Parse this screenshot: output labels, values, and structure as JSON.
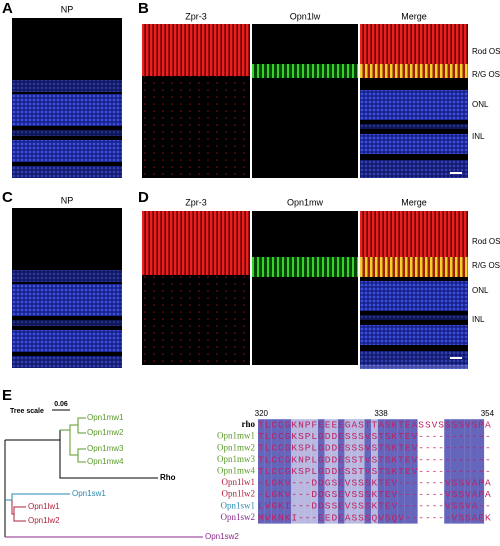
{
  "panel_a": {
    "label": "A",
    "title": "NP"
  },
  "panel_b": {
    "label": "B",
    "titles": [
      "Zpr-3",
      "Opn1lw",
      "Merge"
    ],
    "layers": [
      "Rod OS",
      "R/G OS",
      "ONL",
      "INL"
    ]
  },
  "panel_c": {
    "label": "C",
    "title": "NP"
  },
  "panel_d": {
    "label": "D",
    "titles": [
      "Zpr-3",
      "Opn1mw",
      "Merge"
    ],
    "layers": [
      "Rod OS",
      "R/G OS",
      "ONL",
      "INL"
    ]
  },
  "panel_e": {
    "label": "E",
    "tree_scale_label": "Tree scale",
    "tree_scale": "0.06",
    "leaves": [
      "Opn1mw1",
      "Opn1mw2",
      "Opn1mw3",
      "Opn1mw4",
      "Rho",
      "Opn1sw1",
      "Opn1lw1",
      "Opn1lw2",
      "Opn1sw2"
    ],
    "alignment": {
      "positions": [
        "320",
        "338",
        "354"
      ],
      "rows": [
        {
          "name": "rho",
          "sequence": "TLCCGKNPFEEEEGASTTASKTEASSVSSSSVSPA"
        },
        {
          "name": "Opn1mw1",
          "sequence": "TLCCGKSPLGDDESSSVSTSKTEV-----------"
        },
        {
          "name": "Opn1mw2",
          "sequence": "TLCCGKSPLGDDESSSVSTSKTEV-----------"
        },
        {
          "name": "Opn1mw3",
          "sequence": "TLCCGKNPLGDDESSTVSTSKTEV-----------"
        },
        {
          "name": "Opn1mw4",
          "sequence": "TLCCGKSPLGDDESSTVSTSKTEV-----------"
        },
        {
          "name": "Opn1lw1",
          "sequence": "-LGKV---DDGSEVSSSKTEV-------VSSVAPA"
        },
        {
          "name": "Opn1lw2",
          "sequence": "-LGKV---DDGSEVSSSKTEV-------VSSVAPA"
        },
        {
          "name": "Opn1sw1",
          "sequence": "LVGKI---DDSSEVSSSKTEV-------VSSVA--"
        },
        {
          "name": "Opn1sw2",
          "sequence": "MVKNKI---EEDEASSSQVSQV-------VSSAEK"
        }
      ]
    }
  }
}
